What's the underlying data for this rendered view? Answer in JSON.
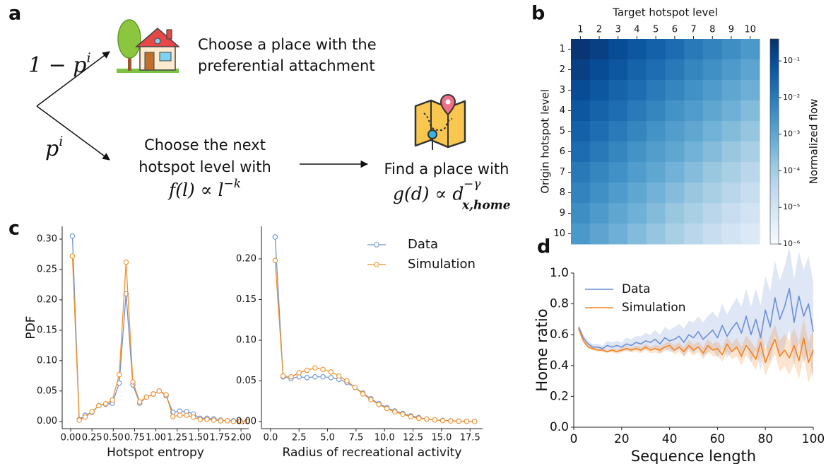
{
  "panel_labels": [
    "a",
    "b",
    "c",
    "d"
  ],
  "diagram": {
    "branch_top": {
      "base": "1 − p",
      "sup": "i"
    },
    "branch_bottom": {
      "base": "p",
      "sup": "i"
    },
    "preferential": [
      "Choose a place with the",
      "preferential attachment"
    ],
    "hotspot": [
      "Choose the next",
      "hotspot level with"
    ],
    "hotspot_formula": {
      "base": "f(l) ∝ l",
      "sup": "−k"
    },
    "distance": "Find a place with",
    "distance_formula": {
      "base": "g(d) ∝ d",
      "sup": "−γ",
      "sub": "x,home"
    }
  },
  "chart_data": [
    {
      "type": "heatmap",
      "xlabel": "Target hotspot level",
      "ylabel": "Origin hotspot level",
      "x_categories": [
        "1",
        "2",
        "3",
        "4",
        "5",
        "6",
        "7",
        "8",
        "9",
        "10"
      ],
      "y_categories": [
        "1",
        "2",
        "3",
        "4",
        "5",
        "6",
        "7",
        "8",
        "9",
        "10"
      ],
      "values": [
        [
          0.3,
          0.18,
          0.1,
          0.06,
          0.035,
          0.02,
          0.011,
          0.0066,
          0.0038,
          0.0022
        ],
        [
          0.18,
          0.1,
          0.06,
          0.033,
          0.019,
          0.011,
          0.006,
          0.0035,
          0.002,
          0.0011
        ],
        [
          0.1,
          0.06,
          0.033,
          0.019,
          0.01,
          0.006,
          0.0033,
          0.0019,
          0.001,
          0.0006
        ],
        [
          0.06,
          0.033,
          0.019,
          0.01,
          0.006,
          0.003,
          0.0018,
          0.001,
          0.00055,
          0.0003
        ],
        [
          0.035,
          0.019,
          0.01,
          0.006,
          0.003,
          0.0017,
          0.001,
          0.0005,
          0.0003,
          0.00016
        ],
        [
          0.02,
          0.011,
          0.006,
          0.003,
          0.0017,
          0.001,
          0.0005,
          0.00028,
          0.00015,
          8e-05
        ],
        [
          0.011,
          0.006,
          0.0033,
          0.0018,
          0.001,
          0.0005,
          0.00028,
          0.00015,
          8e-05,
          4e-05
        ],
        [
          0.0066,
          0.0035,
          0.0019,
          0.001,
          0.0005,
          0.00028,
          0.00015,
          8e-05,
          4e-05,
          2e-05
        ],
        [
          0.0038,
          0.002,
          0.001,
          0.00055,
          0.0003,
          0.00015,
          8e-05,
          4e-05,
          2e-05,
          1.1e-05
        ],
        [
          0.0022,
          0.0011,
          0.0006,
          0.0003,
          0.00016,
          8e-05,
          4e-05,
          2e-05,
          1.1e-05,
          6e-06
        ]
      ],
      "clabel": "Normalized flow",
      "clim": [
        1e-06,
        0.4
      ],
      "log_color": true,
      "cticks": [
        {
          "value": 0.1,
          "label": "10⁻¹"
        },
        {
          "value": 0.01,
          "label": "10⁻²"
        },
        {
          "value": 0.001,
          "label": "10⁻³"
        },
        {
          "value": 0.0001,
          "label": "10⁻⁴"
        },
        {
          "value": 1e-05,
          "label": "10⁻⁵"
        },
        {
          "value": 1e-06,
          "label": "10⁻⁶"
        }
      ],
      "colormap": [
        "#f7fbff",
        "#deebf7",
        "#c6dbef",
        "#9ecae1",
        "#6baed6",
        "#4292c6",
        "#2171b5",
        "#08519c",
        "#08306b"
      ]
    },
    {
      "type": "line",
      "xlabel": "Hotspot entropy",
      "ylabel": "PDF",
      "markers": true,
      "x": [
        0.02,
        0.1,
        0.17,
        0.25,
        0.33,
        0.41,
        0.49,
        0.57,
        0.65,
        0.73,
        0.81,
        0.89,
        0.97,
        1.04,
        1.12,
        1.2,
        1.28,
        1.36,
        1.44,
        1.52,
        1.6,
        1.68,
        1.76,
        1.84,
        1.91,
        1.99,
        2.07
      ],
      "series": [
        {
          "color": "#7092d2",
          "values": [
            0.305,
            0.003,
            0.01,
            0.015,
            0.026,
            0.028,
            0.03,
            0.063,
            0.21,
            0.06,
            0.03,
            0.04,
            0.045,
            0.05,
            0.042,
            0.015,
            0.017,
            0.016,
            0.012,
            0.005,
            0.005,
            0.004,
            0.002,
            0.001,
            0.001,
            0.0005,
            0
          ]
        },
        {
          "color": "#f2912a",
          "values": [
            0.272,
            0.002,
            0.007,
            0.016,
            0.026,
            0.029,
            0.035,
            0.077,
            0.262,
            0.065,
            0.032,
            0.04,
            0.045,
            0.05,
            0.044,
            0.008,
            0.01,
            0.01,
            0.007,
            0.003,
            0.003,
            0.002,
            0.001,
            0.001,
            0,
            0,
            0
          ]
        }
      ],
      "xlim": [
        -0.1,
        2.09
      ],
      "ylim": [
        -0.012,
        0.321
      ],
      "xticks": [
        {
          "value": 0,
          "label": "0.00"
        },
        0.25,
        {
          "value": 0.5,
          "label": "0.50"
        },
        0.75,
        {
          "value": 1,
          "label": "1.00"
        },
        1.25,
        {
          "value": 1.5,
          "label": "1.50"
        },
        1.75,
        {
          "value": 2,
          "label": "2.00"
        }
      ],
      "yticks": [
        {
          "value": 0,
          "label": "0.00"
        },
        0.05,
        {
          "value": 0.1,
          "label": "0.10"
        },
        0.15,
        {
          "value": 0.2,
          "label": "0.20"
        },
        0.25,
        {
          "value": 0.3,
          "label": "0.30"
        }
      ]
    },
    {
      "type": "line",
      "xlabel": "Radius of recreational activity",
      "markers": true,
      "legend": "upper right",
      "x": [
        0.4,
        1.1,
        1.8,
        2.5,
        3.2,
        3.9,
        4.6,
        5.3,
        6,
        6.7,
        7.4,
        8.1,
        8.8,
        9.5,
        10.2,
        10.9,
        11.6,
        12.3,
        13,
        13.7,
        14.4,
        15.1,
        15.8,
        16.5,
        17.2,
        17.9
      ],
      "series": [
        {
          "name": "Data",
          "color": "#7092d2",
          "values": [
            0.227,
            0.055,
            0.053,
            0.055,
            0.054,
            0.055,
            0.055,
            0.054,
            0.052,
            0.048,
            0.042,
            0.035,
            0.028,
            0.022,
            0.017,
            0.013,
            0.01,
            0.007,
            0.005,
            0.003,
            0.002,
            0.0015,
            0.001,
            0.0005,
            0.0003,
            0.0002
          ]
        },
        {
          "name": "Simulation",
          "color": "#f2912a",
          "values": [
            0.198,
            0.056,
            0.055,
            0.06,
            0.063,
            0.066,
            0.064,
            0.061,
            0.056,
            0.05,
            0.042,
            0.034,
            0.027,
            0.021,
            0.016,
            0.012,
            0.009,
            0.006,
            0.004,
            0.003,
            0.002,
            0.0012,
            0.0008,
            0.0004,
            0.0002,
            0.0001
          ]
        }
      ],
      "xlim": [
        -0.8,
        18.6
      ],
      "ylim": [
        -0.0087,
        0.24
      ],
      "xticks": [
        {
          "value": 0,
          "label": "0.0"
        },
        2.5,
        {
          "value": 5,
          "label": "5.0"
        },
        7.5,
        {
          "value": 10,
          "label": "10.0"
        },
        12.5,
        {
          "value": 15,
          "label": "15.0"
        },
        17.5
      ],
      "yticks": [
        {
          "value": 0,
          "label": "0.00"
        },
        0.05,
        {
          "value": 0.1,
          "label": "0.10"
        },
        0.15,
        {
          "value": 0.2,
          "label": "0.20"
        }
      ]
    },
    {
      "type": "line",
      "xlabel": "Sequence length",
      "ylabel": "Home ratio",
      "markers": false,
      "legend": "upper left",
      "x": [
        2,
        4,
        6,
        8,
        10,
        12,
        14,
        16,
        18,
        20,
        22,
        24,
        26,
        28,
        30,
        32,
        34,
        36,
        38,
        40,
        42,
        44,
        46,
        48,
        50,
        52,
        54,
        56,
        58,
        60,
        62,
        64,
        66,
        68,
        70,
        72,
        74,
        76,
        78,
        80,
        82,
        84,
        86,
        88,
        90,
        92,
        94,
        96,
        98,
        100
      ],
      "series": [
        {
          "name": "Data",
          "color": "#6d8fd6",
          "values": [
            0.65,
            0.58,
            0.54,
            0.52,
            0.52,
            0.51,
            0.53,
            0.52,
            0.53,
            0.52,
            0.54,
            0.53,
            0.55,
            0.54,
            0.56,
            0.55,
            0.57,
            0.54,
            0.58,
            0.56,
            0.57,
            0.59,
            0.55,
            0.6,
            0.58,
            0.62,
            0.57,
            0.6,
            0.63,
            0.58,
            0.66,
            0.59,
            0.64,
            0.68,
            0.61,
            0.72,
            0.6,
            0.7,
            0.58,
            0.76,
            0.65,
            0.84,
            0.7,
            0.78,
            0.9,
            0.68,
            0.85,
            0.72,
            0.8,
            0.62
          ],
          "error": [
            0.02,
            0.02,
            0.02,
            0.02,
            0.02,
            0.02,
            0.03,
            0.03,
            0.03,
            0.03,
            0.04,
            0.04,
            0.04,
            0.05,
            0.05,
            0.05,
            0.06,
            0.06,
            0.07,
            0.07,
            0.08,
            0.08,
            0.09,
            0.09,
            0.1,
            0.1,
            0.11,
            0.12,
            0.12,
            0.13,
            0.14,
            0.14,
            0.15,
            0.16,
            0.17,
            0.18,
            0.18,
            0.2,
            0.21,
            0.22,
            0.23,
            0.24,
            0.25,
            0.26,
            0.27,
            0.28,
            0.29,
            0.3,
            0.31,
            0.32
          ]
        },
        {
          "name": "Simulation",
          "color": "#f5841f",
          "values": [
            0.64,
            0.56,
            0.52,
            0.51,
            0.5,
            0.5,
            0.49,
            0.5,
            0.49,
            0.5,
            0.51,
            0.5,
            0.51,
            0.5,
            0.52,
            0.5,
            0.51,
            0.5,
            0.52,
            0.53,
            0.5,
            0.52,
            0.49,
            0.53,
            0.5,
            0.52,
            0.48,
            0.53,
            0.5,
            0.51,
            0.47,
            0.54,
            0.49,
            0.52,
            0.46,
            0.53,
            0.49,
            0.44,
            0.55,
            0.42,
            0.5,
            0.57,
            0.46,
            0.5,
            0.45,
            0.53,
            0.43,
            0.58,
            0.42,
            0.5
          ],
          "error": [
            0.01,
            0.01,
            0.01,
            0.01,
            0.01,
            0.01,
            0.01,
            0.01,
            0.015,
            0.015,
            0.015,
            0.015,
            0.02,
            0.02,
            0.02,
            0.02,
            0.025,
            0.025,
            0.025,
            0.025,
            0.03,
            0.03,
            0.03,
            0.035,
            0.035,
            0.035,
            0.04,
            0.04,
            0.04,
            0.045,
            0.045,
            0.05,
            0.05,
            0.06,
            0.06,
            0.065,
            0.065,
            0.07,
            0.08,
            0.085,
            0.09,
            0.095,
            0.1,
            0.105,
            0.11,
            0.115,
            0.12,
            0.125,
            0.13,
            0.135
          ]
        }
      ],
      "xlim": [
        0,
        100
      ],
      "ylim": [
        0,
        1
      ],
      "xticks": [
        0,
        20,
        40,
        60,
        80,
        100
      ],
      "yticks": [
        {
          "value": 0,
          "label": "0.0"
        },
        0.2,
        0.4,
        0.6,
        0.8,
        {
          "value": 1,
          "label": "1.0"
        }
      ]
    }
  ]
}
